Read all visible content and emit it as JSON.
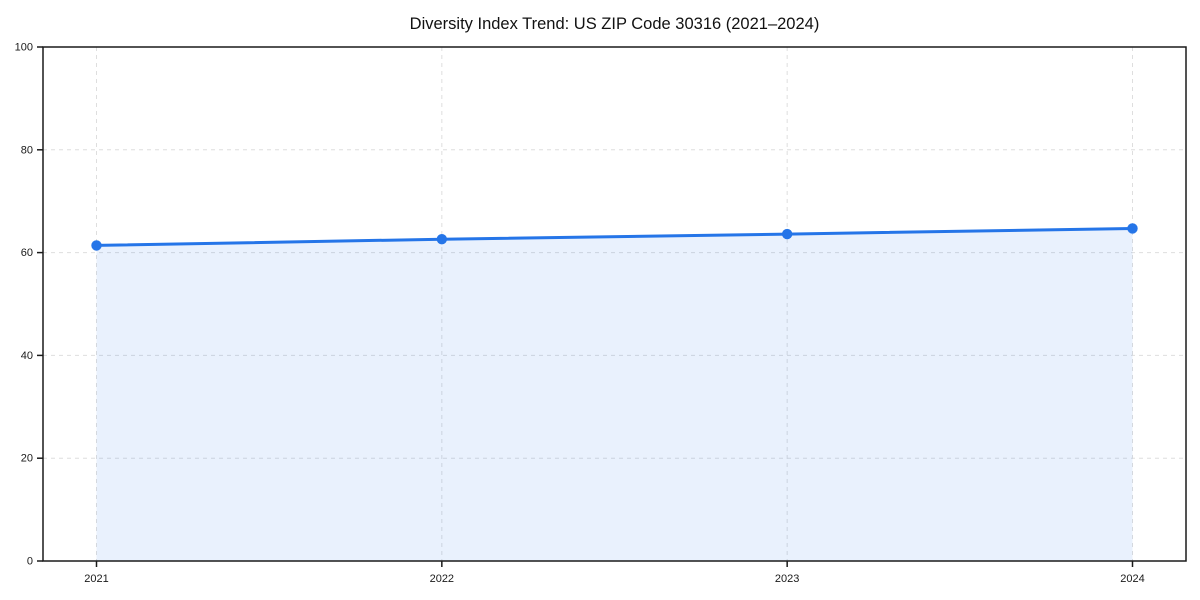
{
  "chart_data": {
    "type": "line",
    "title": "Diversity Index Trend: US ZIP Code 30316 (2021–2024)",
    "x": [
      "2021",
      "2022",
      "2023",
      "2024"
    ],
    "series": [
      {
        "name": "Diversity Index",
        "values": [
          61.4,
          62.6,
          63.6,
          64.7
        ]
      }
    ],
    "xlabel": "",
    "ylabel": "",
    "ylim": [
      0,
      100
    ],
    "yticks": [
      0,
      20,
      40,
      60,
      80,
      100
    ],
    "grid": true,
    "grid_style": "dashed",
    "legend_position": "none",
    "marker": "circle",
    "area_fill": true,
    "colors": {
      "line": "#2575e8",
      "marker": "#2575e8",
      "fill": "rgba(37,117,232,0.10)",
      "grid": "#dedede",
      "axis": "#1a1a1a",
      "tick_label": "#1a1a1a",
      "title": "#111111",
      "background": "#ffffff"
    }
  }
}
